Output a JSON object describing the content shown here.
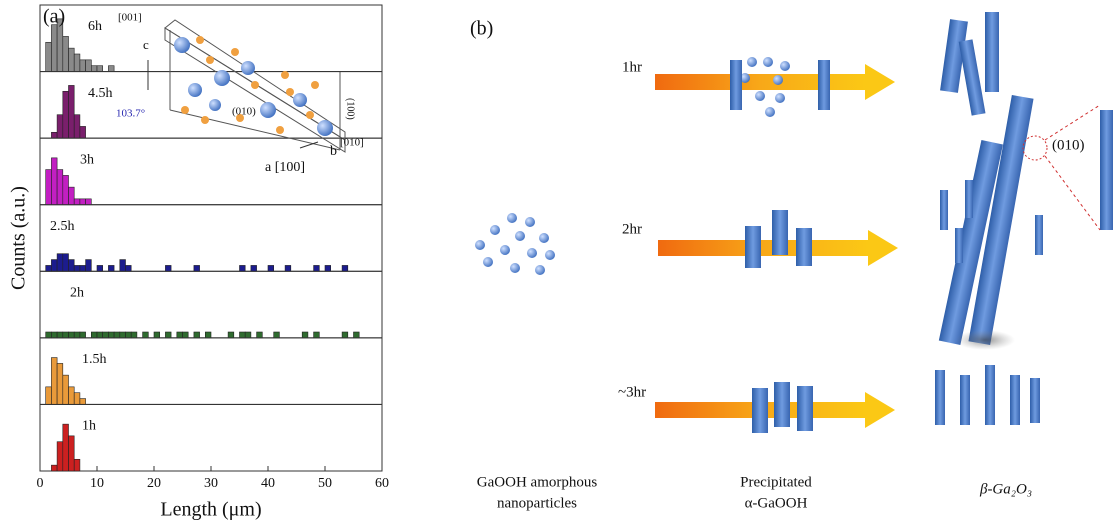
{
  "chart_data": {
    "type": "histogram",
    "panel_label": "(a)",
    "x_label": "Length (μm)",
    "y_label": "Counts (a.u.)",
    "xlim": [
      0,
      60
    ],
    "xticks": [
      0,
      10,
      20,
      30,
      40,
      50,
      60
    ],
    "ylim": [
      0,
      10
    ],
    "series": [
      {
        "name": "6h",
        "color": "#8a8a8a",
        "bins": [
          1,
          2,
          3,
          4,
          5,
          6,
          7,
          8,
          9,
          10,
          11,
          12,
          13
        ],
        "values": [
          5,
          8,
          9,
          6,
          4,
          3,
          2,
          2,
          1,
          1,
          0,
          1
        ]
      },
      {
        "name": "4.5h",
        "color": "#7a1f6c",
        "bins": [
          2,
          3,
          4,
          5,
          6,
          7,
          8
        ],
        "values": [
          1,
          4,
          8,
          9,
          4,
          2
        ]
      },
      {
        "name": "3h",
        "color": "#c21fc2",
        "bins": [
          1,
          2,
          3,
          4,
          5,
          6,
          7,
          8,
          9
        ],
        "values": [
          6,
          8,
          6,
          5,
          3,
          1,
          1,
          1
        ]
      },
      {
        "name": "2.5h",
        "color": "#1c1c8e",
        "bins": [
          1,
          2,
          3,
          4,
          5,
          6,
          7,
          8,
          9,
          10,
          11,
          12,
          13,
          14,
          15,
          16,
          17,
          18,
          19,
          20,
          21,
          22,
          23,
          24,
          25,
          26,
          27,
          28,
          29,
          30,
          31,
          32,
          33,
          34,
          35,
          36,
          37,
          38,
          39,
          40,
          41,
          42,
          43,
          44,
          45,
          46,
          47,
          48,
          49,
          50,
          51,
          52,
          53,
          54
        ],
        "values": [
          1,
          2,
          3,
          3,
          2,
          1,
          1,
          2,
          0,
          1,
          0,
          1,
          0,
          2,
          1,
          0,
          0,
          0,
          0,
          0,
          0,
          1,
          0,
          0,
          0,
          0,
          1,
          0,
          0,
          0,
          0,
          0,
          0,
          0,
          1,
          0,
          1,
          0,
          0,
          1,
          0,
          0,
          1,
          0,
          0,
          0,
          0,
          1,
          0,
          1,
          0,
          0,
          1
        ]
      },
      {
        "name": "2h",
        "color": "#2f6b2f",
        "bins": [
          1,
          2,
          3,
          4,
          5,
          6,
          7,
          8,
          9,
          10,
          11,
          12,
          13,
          14,
          15,
          16,
          17,
          18,
          19,
          20,
          21,
          22,
          23,
          24,
          25,
          26,
          27,
          28,
          29,
          30,
          31,
          32,
          33,
          34,
          35,
          36,
          37,
          38,
          39,
          40,
          41,
          42,
          43,
          44,
          45,
          46,
          47,
          48,
          49,
          50,
          51,
          52,
          53,
          54,
          55,
          56
        ],
        "values": [
          1,
          1,
          1,
          1,
          1,
          1,
          1,
          0,
          1,
          1,
          1,
          1,
          1,
          1,
          1,
          1,
          0,
          1,
          0,
          1,
          0,
          1,
          0,
          1,
          1,
          0,
          1,
          0,
          1,
          0,
          0,
          0,
          1,
          0,
          1,
          1,
          0,
          1,
          0,
          0,
          1,
          0,
          0,
          0,
          0,
          1,
          0,
          1,
          0,
          0,
          0,
          0,
          1,
          0,
          1
        ]
      },
      {
        "name": "1.5h",
        "color": "#e99a3a",
        "bins": [
          1,
          2,
          3,
          4,
          5,
          6,
          7,
          8
        ],
        "values": [
          3,
          8,
          7,
          5,
          3,
          2,
          1
        ]
      },
      {
        "name": "1h",
        "color": "#cc2020",
        "bins": [
          2,
          3,
          4,
          5,
          6,
          7
        ],
        "values": [
          1,
          5,
          8,
          6,
          2
        ]
      }
    ]
  },
  "inset": {
    "axis_c_index": "[001]",
    "axis_c": "c",
    "plane": "(010)",
    "angle": "103.7°",
    "axis_a": "a [100]",
    "axis_b": "b",
    "axis_b_index": "[010]",
    "side_plane": "(100)"
  },
  "panel_b": {
    "label": "(b)",
    "times": [
      "1hr",
      "2hr",
      "~3hr"
    ],
    "facet": "(010)",
    "captions": [
      [
        "GaOOH amorphous",
        "nanoparticles"
      ],
      [
        "Precipitated",
        "α-GaOOH"
      ],
      [
        "β-Ga₂O₃"
      ]
    ]
  }
}
